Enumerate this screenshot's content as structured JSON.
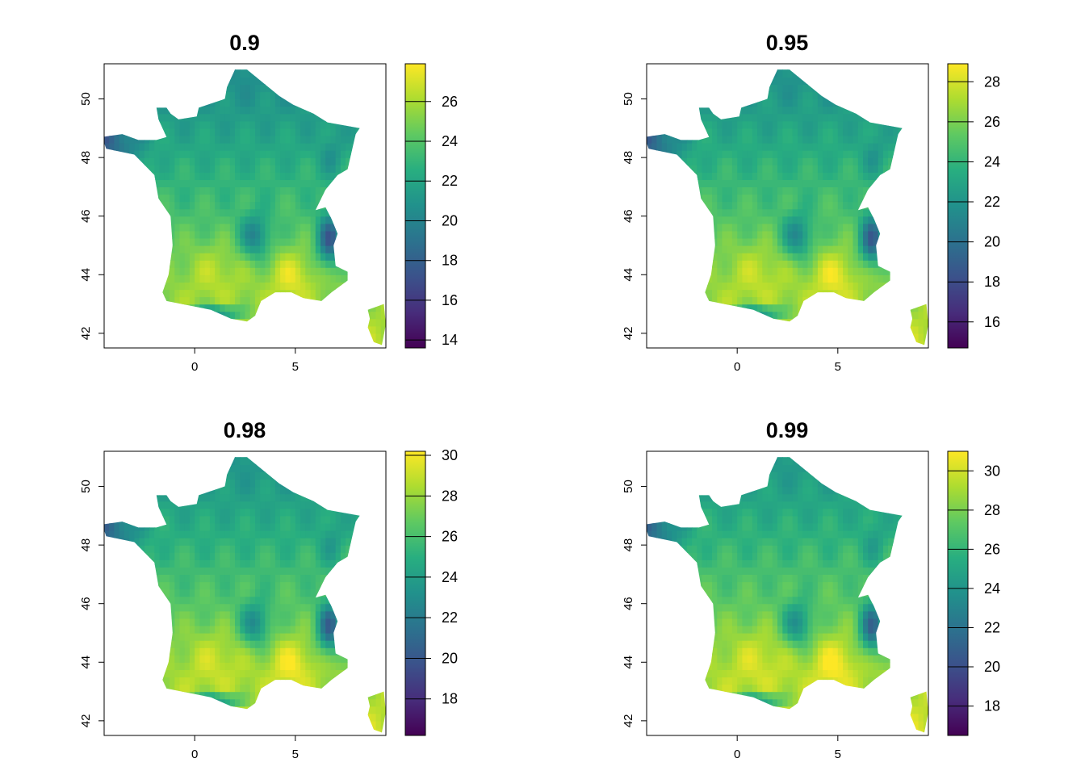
{
  "figure": {
    "panels": [
      {
        "title": "0.9",
        "x_ticks": [
          0,
          5
        ],
        "y_ticks": [
          42,
          44,
          46,
          48,
          50
        ],
        "extent": {
          "xmin": -4.5,
          "xmax": 9.5,
          "ymin": 41.5,
          "ymax": 51.2
        },
        "colorbar": {
          "min": 13.6,
          "max": 27.9,
          "ticks": [
            14,
            16,
            18,
            20,
            22,
            24,
            26
          ]
        }
      },
      {
        "title": "0.95",
        "x_ticks": [
          0,
          5
        ],
        "y_ticks": [
          42,
          44,
          46,
          48,
          50
        ],
        "extent": {
          "xmin": -4.5,
          "xmax": 9.5,
          "ymin": 41.5,
          "ymax": 51.2
        },
        "colorbar": {
          "min": 14.7,
          "max": 28.9,
          "ticks": [
            16,
            18,
            20,
            22,
            24,
            26,
            28
          ]
        }
      },
      {
        "title": "0.98",
        "x_ticks": [
          0,
          5
        ],
        "y_ticks": [
          42,
          44,
          46,
          48,
          50
        ],
        "extent": {
          "xmin": -4.5,
          "xmax": 9.5,
          "ymin": 41.5,
          "ymax": 51.2
        },
        "colorbar": {
          "min": 16.2,
          "max": 30.2,
          "ticks": [
            18,
            20,
            22,
            24,
            26,
            28,
            30
          ]
        }
      },
      {
        "title": "0.99",
        "x_ticks": [
          0,
          5
        ],
        "y_ticks": [
          42,
          44,
          46,
          48,
          50
        ],
        "extent": {
          "xmin": -4.5,
          "xmax": 9.5,
          "ymin": 41.5,
          "ymax": 51.2
        },
        "colorbar": {
          "min": 16.5,
          "max": 31.0,
          "ticks": [
            18,
            20,
            22,
            24,
            26,
            28,
            30
          ]
        }
      }
    ],
    "palette": [
      "#440154",
      "#472d7b",
      "#3b528b",
      "#2c728e",
      "#21918c",
      "#28ae80",
      "#5ec962",
      "#addc30",
      "#fde725"
    ]
  }
}
